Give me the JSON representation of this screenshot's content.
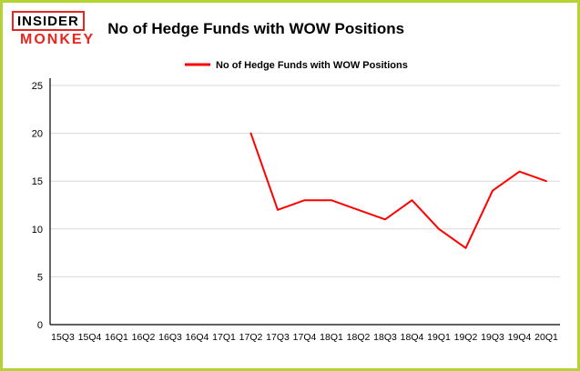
{
  "header": {
    "logo": {
      "line1": "INSIDER",
      "line2": "MONKEY"
    },
    "title": "No of Hedge Funds with WOW Positions"
  },
  "chart_data": {
    "type": "line",
    "title": "No of Hedge Funds with WOW Positions",
    "categories": [
      "15Q3",
      "15Q4",
      "16Q1",
      "16Q2",
      "16Q3",
      "16Q4",
      "17Q1",
      "17Q2",
      "17Q3",
      "17Q4",
      "18Q1",
      "18Q2",
      "18Q3",
      "18Q4",
      "19Q1",
      "19Q2",
      "19Q3",
      "19Q4",
      "20Q1"
    ],
    "series": [
      {
        "name": "No of Hedge Funds with WOW Positions",
        "color": "#ff0000",
        "values": [
          null,
          null,
          null,
          null,
          null,
          null,
          null,
          20,
          12,
          13,
          13,
          12,
          11,
          13,
          10,
          8,
          14,
          16,
          15
        ]
      }
    ],
    "ylim": [
      0,
      25
    ],
    "yticks": [
      0,
      5,
      10,
      15,
      20,
      25
    ],
    "grid": "horizontal",
    "legend_position": "top-center",
    "xlabel": "",
    "ylabel": ""
  },
  "colors": {
    "frame_border": "#b5d334",
    "line": "#ff0000",
    "grid": "#d8d8d8",
    "axis": "#000000",
    "logo_red": "#e8251f",
    "background": "#ffffff",
    "text": "#000000"
  }
}
